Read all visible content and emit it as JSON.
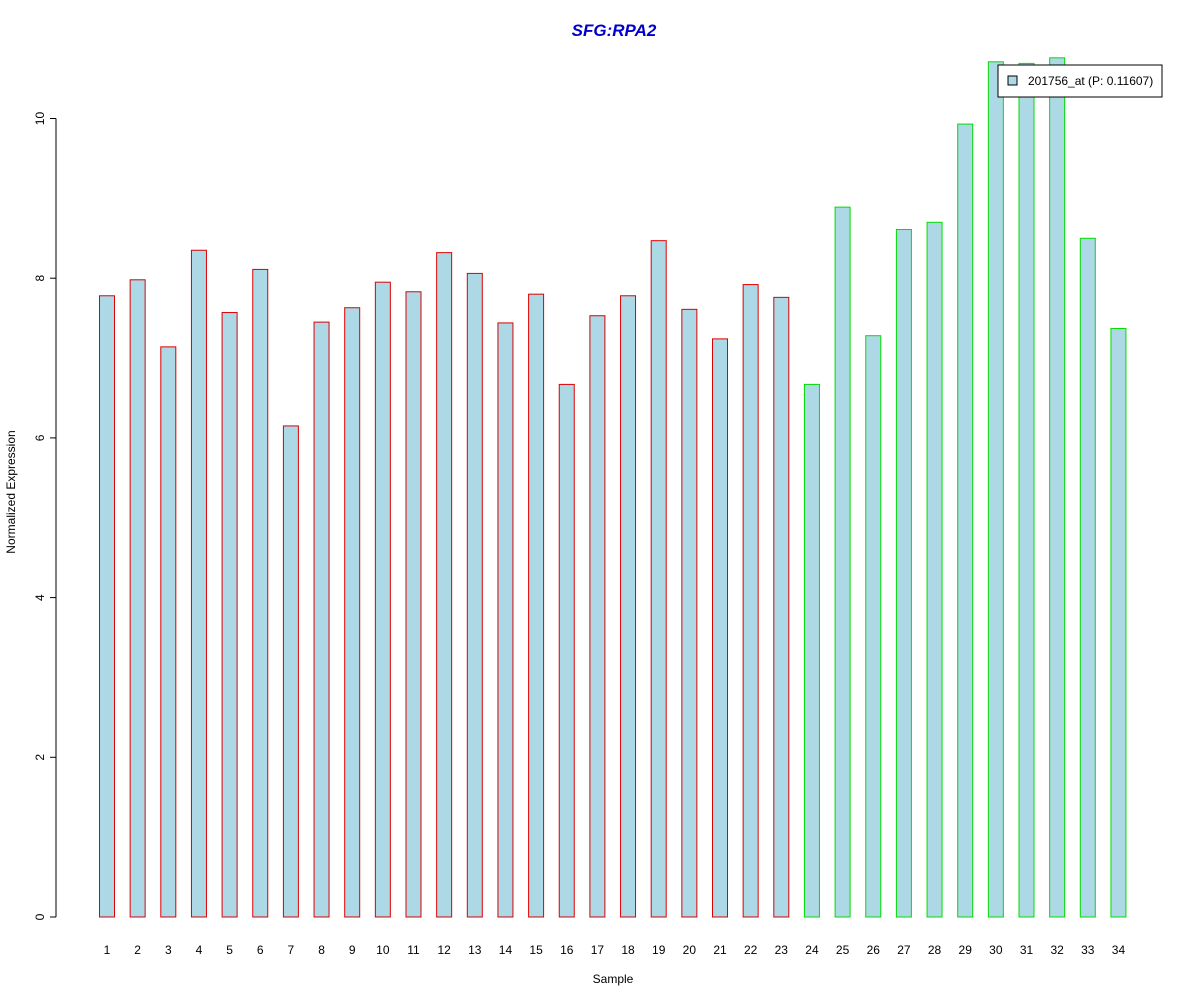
{
  "chart_data": {
    "type": "bar",
    "title": "SFG:RPA2",
    "xlabel": "Sample",
    "ylabel": "Normalized Expression",
    "ylim": [
      0,
      10.9
    ],
    "yticks": [
      0,
      2,
      4,
      6,
      8,
      10
    ],
    "grid": false,
    "legend_position": "top-right",
    "categories": [
      "1",
      "2",
      "3",
      "4",
      "5",
      "6",
      "7",
      "8",
      "9",
      "10",
      "11",
      "12",
      "13",
      "14",
      "15",
      "16",
      "17",
      "18",
      "19",
      "20",
      "21",
      "22",
      "23",
      "24",
      "25",
      "26",
      "27",
      "28",
      "29",
      "30",
      "31",
      "32",
      "33",
      "34"
    ],
    "series": [
      {
        "name": "201756_at (P: 0.11607)",
        "values": [
          7.78,
          7.98,
          7.14,
          8.35,
          7.57,
          8.11,
          6.15,
          7.45,
          7.63,
          7.95,
          7.83,
          8.32,
          8.06,
          7.44,
          7.8,
          6.67,
          7.53,
          7.78,
          8.47,
          7.61,
          7.24,
          7.92,
          7.76,
          6.67,
          8.89,
          7.28,
          8.61,
          8.7,
          9.93,
          10.71,
          10.69,
          10.76,
          8.5,
          7.37
        ]
      }
    ],
    "bar_border_groups": [
      {
        "samples": "1-23",
        "color": "#dd0000"
      },
      {
        "samples": "24-34",
        "color": "#00dd00"
      }
    ],
    "colors": {
      "title": "#0000cc",
      "bar_fill": "#add8e6",
      "axis": "#000000"
    }
  }
}
